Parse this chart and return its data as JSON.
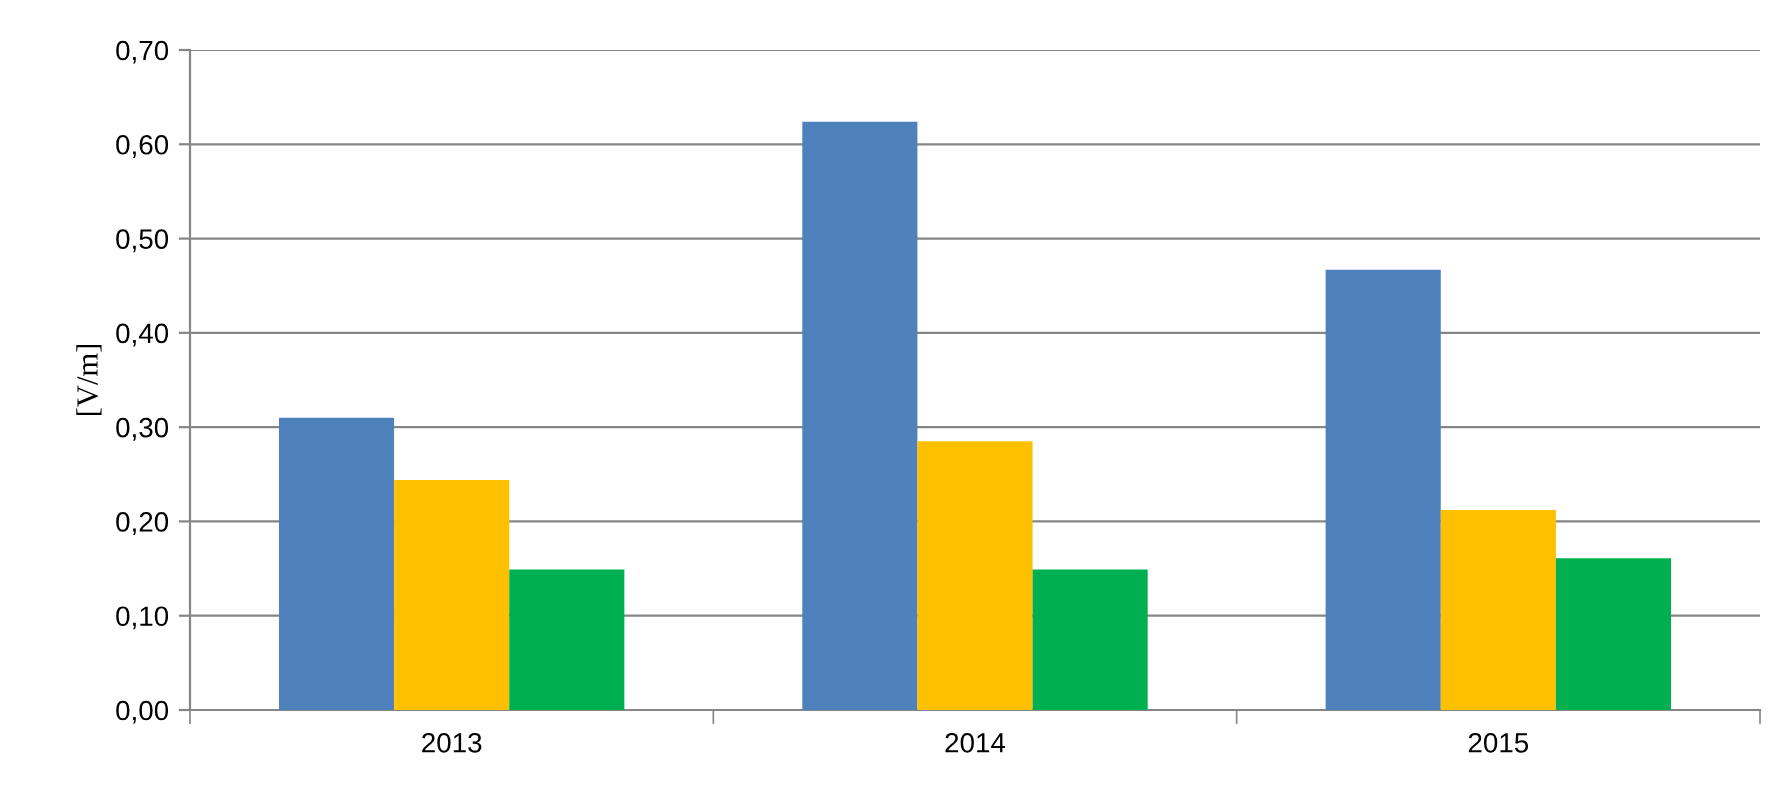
{
  "chart_data": {
    "type": "bar",
    "ylabel": "[V/m]",
    "categories": [
      "2013",
      "2014",
      "2015"
    ],
    "series": [
      {
        "color": "#4f81bd",
        "values": [
          0.31,
          0.624,
          0.467
        ]
      },
      {
        "color": "#ffc000",
        "values": [
          0.244,
          0.285,
          0.212
        ]
      },
      {
        "color": "#00b050",
        "values": [
          0.149,
          0.149,
          0.161
        ]
      }
    ],
    "ylim": [
      0,
      0.7
    ],
    "yticks": [
      {
        "value": 0,
        "label": "0,00"
      },
      {
        "value": 0.1,
        "label": "0,10"
      },
      {
        "value": 0.2,
        "label": "0,20"
      },
      {
        "value": 0.3,
        "label": "0,30"
      },
      {
        "value": 0.4,
        "label": "0,40"
      },
      {
        "value": 0.5,
        "label": "0,50"
      },
      {
        "value": 0.6,
        "label": "0,60"
      },
      {
        "value": 0.7,
        "label": "0,70"
      }
    ],
    "grid": "y"
  }
}
